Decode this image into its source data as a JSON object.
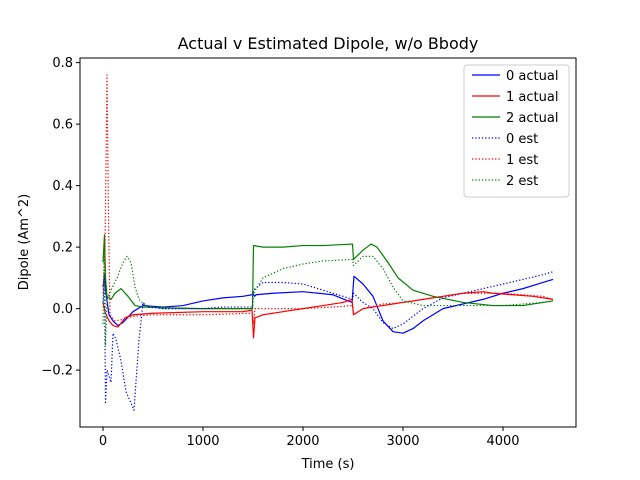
{
  "chart_data": {
    "type": "line",
    "title": "Actual v Estimated Dipole, w/o Bbody",
    "xlabel": "Time (s)",
    "ylabel": "Dipole (Am^2)",
    "xlim": [
      -230,
      4730
    ],
    "ylim": [
      -0.385,
      0.815
    ],
    "xticks": [
      0,
      1000,
      2000,
      3000,
      4000
    ],
    "xtick_labels": [
      "0",
      "1000",
      "2000",
      "3000",
      "4000"
    ],
    "yticks": [
      -0.2,
      0.0,
      0.2,
      0.4,
      0.6,
      0.8
    ],
    "ytick_labels": [
      "−0.2",
      "0.0",
      "0.2",
      "0.4",
      "0.6",
      "0.8"
    ],
    "grid": false,
    "legend_position": "top-right",
    "series": [
      {
        "name": "0 actual",
        "color": "#0000ff",
        "style": "solid",
        "points": [
          [
            0,
            0.07
          ],
          [
            15,
            0.11
          ],
          [
            30,
            0.05
          ],
          [
            60,
            -0.02
          ],
          [
            100,
            -0.04
          ],
          [
            150,
            -0.055
          ],
          [
            200,
            -0.045
          ],
          [
            300,
            -0.01
          ],
          [
            400,
            0.01
          ],
          [
            600,
            0.005
          ],
          [
            800,
            0.01
          ],
          [
            1000,
            0.025
          ],
          [
            1200,
            0.035
          ],
          [
            1400,
            0.04
          ],
          [
            1490,
            0.045
          ],
          [
            1500,
            0.05
          ],
          [
            1515,
            0.04
          ],
          [
            1530,
            0.045
          ],
          [
            1700,
            0.05
          ],
          [
            2000,
            0.055
          ],
          [
            2300,
            0.045
          ],
          [
            2490,
            0.02
          ],
          [
            2510,
            0.105
          ],
          [
            2600,
            0.08
          ],
          [
            2700,
            0.04
          ],
          [
            2800,
            -0.04
          ],
          [
            2900,
            -0.075
          ],
          [
            3000,
            -0.08
          ],
          [
            3100,
            -0.065
          ],
          [
            3200,
            -0.04
          ],
          [
            3400,
            0.0
          ],
          [
            3600,
            0.015
          ],
          [
            3800,
            0.03
          ],
          [
            4000,
            0.05
          ],
          [
            4200,
            0.065
          ],
          [
            4400,
            0.085
          ],
          [
            4500,
            0.095
          ]
        ]
      },
      {
        "name": "1 actual",
        "color": "#ff0000",
        "style": "solid",
        "points": [
          [
            0,
            0.02
          ],
          [
            20,
            -0.01
          ],
          [
            60,
            -0.04
          ],
          [
            100,
            -0.055
          ],
          [
            150,
            -0.06
          ],
          [
            220,
            -0.03
          ],
          [
            300,
            -0.02
          ],
          [
            500,
            -0.015
          ],
          [
            1000,
            -0.01
          ],
          [
            1400,
            -0.01
          ],
          [
            1490,
            -0.005
          ],
          [
            1505,
            -0.095
          ],
          [
            1520,
            -0.03
          ],
          [
            1600,
            -0.02
          ],
          [
            1800,
            -0.01
          ],
          [
            2000,
            0.0
          ],
          [
            2200,
            0.01
          ],
          [
            2400,
            0.02
          ],
          [
            2490,
            0.03
          ],
          [
            2505,
            -0.02
          ],
          [
            2600,
            0.0
          ],
          [
            2800,
            0.01
          ],
          [
            3000,
            0.02
          ],
          [
            3200,
            0.03
          ],
          [
            3400,
            0.04
          ],
          [
            3600,
            0.05
          ],
          [
            3800,
            0.055
          ],
          [
            3900,
            0.05
          ],
          [
            4100,
            0.045
          ],
          [
            4300,
            0.04
          ],
          [
            4500,
            0.03
          ]
        ]
      },
      {
        "name": "2 actual",
        "color": "#008000",
        "style": "solid",
        "points": [
          [
            0,
            0.15
          ],
          [
            15,
            0.24
          ],
          [
            25,
            0.1
          ],
          [
            40,
            0.04
          ],
          [
            80,
            0.03
          ],
          [
            120,
            0.05
          ],
          [
            180,
            0.065
          ],
          [
            250,
            0.04
          ],
          [
            320,
            0.01
          ],
          [
            400,
            0.005
          ],
          [
            600,
            0.003
          ],
          [
            1000,
            0.0
          ],
          [
            1495,
            0.0
          ],
          [
            1505,
            0.205
          ],
          [
            1600,
            0.2
          ],
          [
            1800,
            0.2
          ],
          [
            2000,
            0.205
          ],
          [
            2200,
            0.205
          ],
          [
            2495,
            0.21
          ],
          [
            2505,
            0.16
          ],
          [
            2600,
            0.19
          ],
          [
            2680,
            0.21
          ],
          [
            2740,
            0.2
          ],
          [
            2850,
            0.15
          ],
          [
            2950,
            0.1
          ],
          [
            3100,
            0.06
          ],
          [
            3300,
            0.04
          ],
          [
            3600,
            0.02
          ],
          [
            3900,
            0.01
          ],
          [
            4200,
            0.01
          ],
          [
            4400,
            0.02
          ],
          [
            4500,
            0.025
          ]
        ]
      },
      {
        "name": "0 est",
        "color": "#0000ff",
        "style": "dotted",
        "points": [
          [
            0,
            0.02
          ],
          [
            15,
            0.1
          ],
          [
            25,
            -0.31
          ],
          [
            40,
            -0.2
          ],
          [
            60,
            -0.22
          ],
          [
            80,
            -0.24
          ],
          [
            100,
            -0.08
          ],
          [
            130,
            -0.1
          ],
          [
            180,
            -0.17
          ],
          [
            230,
            -0.27
          ],
          [
            310,
            -0.33
          ],
          [
            360,
            -0.1
          ],
          [
            400,
            0.02
          ],
          [
            450,
            0.005
          ],
          [
            600,
            0.0
          ],
          [
            800,
            0.0
          ],
          [
            1000,
            0.0
          ],
          [
            1200,
            0.005
          ],
          [
            1495,
            0.005
          ],
          [
            1505,
            0.06
          ],
          [
            1600,
            0.085
          ],
          [
            1800,
            0.085
          ],
          [
            2000,
            0.08
          ],
          [
            2200,
            0.06
          ],
          [
            2400,
            0.04
          ],
          [
            2495,
            0.03
          ],
          [
            2505,
            0.05
          ],
          [
            2600,
            0.02
          ],
          [
            2700,
            0.0
          ],
          [
            2800,
            -0.045
          ],
          [
            2900,
            -0.065
          ],
          [
            3000,
            -0.05
          ],
          [
            3200,
            0.0
          ],
          [
            3400,
            0.035
          ],
          [
            3600,
            0.05
          ],
          [
            3800,
            0.065
          ],
          [
            4000,
            0.08
          ],
          [
            4200,
            0.095
          ],
          [
            4400,
            0.11
          ],
          [
            4500,
            0.12
          ]
        ]
      },
      {
        "name": "1 est",
        "color": "#ff0000",
        "style": "dotted",
        "points": [
          [
            0,
            0.05
          ],
          [
            20,
            0.2
          ],
          [
            40,
            0.76
          ],
          [
            55,
            0.3
          ],
          [
            70,
            -0.02
          ],
          [
            120,
            -0.04
          ],
          [
            200,
            -0.035
          ],
          [
            300,
            -0.025
          ],
          [
            500,
            -0.02
          ],
          [
            1000,
            -0.02
          ],
          [
            1495,
            -0.015
          ],
          [
            1505,
            -0.05
          ],
          [
            1520,
            0.0
          ],
          [
            1700,
            0.0
          ],
          [
            2000,
            0.0
          ],
          [
            2300,
            0.005
          ],
          [
            2495,
            0.01
          ],
          [
            2505,
            -0.02
          ],
          [
            2600,
            0.0
          ],
          [
            2800,
            0.015
          ],
          [
            3000,
            0.02
          ],
          [
            3200,
            0.03
          ],
          [
            3400,
            0.04
          ],
          [
            3600,
            0.05
          ],
          [
            3800,
            0.05
          ],
          [
            4000,
            0.05
          ],
          [
            4200,
            0.045
          ],
          [
            4400,
            0.04
          ],
          [
            4500,
            0.03
          ]
        ]
      },
      {
        "name": "2 est",
        "color": "#008000",
        "style": "dotted",
        "points": [
          [
            0,
            -0.05
          ],
          [
            15,
            0.22
          ],
          [
            25,
            -0.12
          ],
          [
            40,
            0.03
          ],
          [
            80,
            0.06
          ],
          [
            140,
            0.1
          ],
          [
            200,
            0.15
          ],
          [
            240,
            0.17
          ],
          [
            280,
            0.15
          ],
          [
            320,
            0.07
          ],
          [
            360,
            0.03
          ],
          [
            420,
            0.01
          ],
          [
            600,
            0.0
          ],
          [
            1000,
            0.0
          ],
          [
            1495,
            0.0
          ],
          [
            1505,
            0.05
          ],
          [
            1600,
            0.1
          ],
          [
            1800,
            0.13
          ],
          [
            2000,
            0.145
          ],
          [
            2200,
            0.155
          ],
          [
            2495,
            0.16
          ],
          [
            2505,
            0.14
          ],
          [
            2600,
            0.17
          ],
          [
            2700,
            0.17
          ],
          [
            2800,
            0.13
          ],
          [
            2900,
            0.07
          ],
          [
            3000,
            0.025
          ],
          [
            3200,
            0.01
          ],
          [
            3400,
            0.01
          ],
          [
            3600,
            0.01
          ],
          [
            3800,
            0.01
          ],
          [
            4000,
            0.01
          ],
          [
            4200,
            0.015
          ],
          [
            4400,
            0.02
          ],
          [
            4500,
            0.025
          ]
        ]
      }
    ]
  }
}
